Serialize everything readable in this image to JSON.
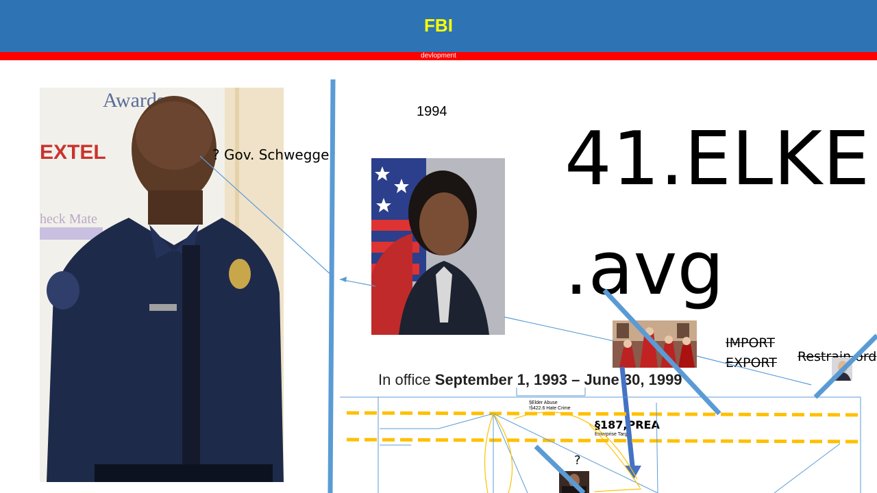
{
  "header": {
    "title": "FBI",
    "subtitle": "devlopment"
  },
  "photos": {
    "officer": "photo of man in police uniform",
    "official": "portrait in front of flag",
    "ceremony": "group in red academic gowns",
    "small_bottom": "small photo",
    "small_right": "small portrait"
  },
  "labels": {
    "year": "1994",
    "big_line1": "41.ELKE",
    "big_line2": ".avg",
    "gov": "? Gov. Schwegger",
    "import": "IMPORT",
    "export": "EXPORT",
    "restrain": "Restrain ord",
    "office_prefix": "In office ",
    "office_dates": "September 1, 1993 – June 30, 1999",
    "elder_abuse": "§Elder Abuse",
    "hate_crime": "!§422.6 Hate Crime",
    "section": "§187,PREA",
    "section_sub": "Enterprise Target",
    "question": "?"
  },
  "colors": {
    "header_blue": "#2e74b5",
    "red_bar": "#ff0000",
    "title_yellow": "#ffff00",
    "accent_blue": "#5b9bd5",
    "dash_orange": "#ffc000"
  }
}
